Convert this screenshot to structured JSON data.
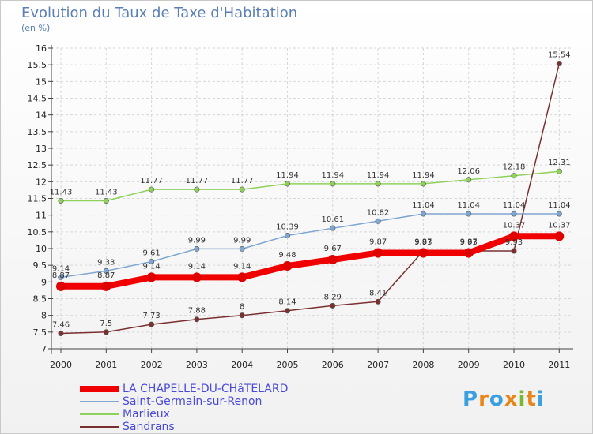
{
  "header": {
    "title": "Evolution du Taux de Taxe d'Habitation",
    "subtitle": "(en %)"
  },
  "logo": {
    "text": "Proxiti",
    "colors": [
      "#3aa0e0",
      "#e8861a",
      "#3aa0e0",
      "#e8861a",
      "#79b82e",
      "#e8861a",
      "#3aa0e0"
    ]
  },
  "chart_data": {
    "type": "line",
    "title": "Evolution du Taux de Taxe d'Habitation",
    "ylabel": "(en %)",
    "xlabel": "",
    "ylim": [
      7,
      16
    ],
    "yticks": [
      "7",
      "7.5",
      "8",
      "8.5",
      "9",
      "9.5",
      "10",
      "10.5",
      "11",
      "11.5",
      "12",
      "12.5",
      "13",
      "13.5",
      "14",
      "14.5",
      "15",
      "15.5",
      "16"
    ],
    "categories": [
      "2000",
      "2001",
      "2002",
      "2003",
      "2004",
      "2005",
      "2006",
      "2007",
      "2008",
      "2009",
      "2010",
      "2011"
    ],
    "grid": true,
    "series": [
      {
        "name": "Marlieux",
        "color": "#8fd15b",
        "values": [
          11.43,
          11.43,
          11.77,
          11.77,
          11.77,
          11.94,
          11.94,
          11.94,
          11.94,
          12.06,
          12.18,
          12.31
        ],
        "labels": [
          "11.43",
          "11.43",
          "11.77",
          "11.77",
          "11.77",
          "11.94",
          "11.94",
          "11.94",
          "11.94",
          "12.06",
          "12.18",
          "12.31"
        ]
      },
      {
        "name": "Saint-Germain-sur-Renon",
        "color": "#7fa7d1",
        "values": [
          9.14,
          9.33,
          9.61,
          9.99,
          9.99,
          10.39,
          10.61,
          10.82,
          11.04,
          11.04,
          11.04,
          11.04
        ],
        "labels": [
          "9.14",
          "9.33",
          "9.61",
          "9.99",
          "9.99",
          "10.39",
          "10.61",
          "10.82",
          "11.04",
          "11.04",
          "11.04",
          "11.04"
        ]
      },
      {
        "name": "Sandrans",
        "color": "#7a3030",
        "values": [
          7.46,
          7.5,
          7.73,
          7.88,
          8,
          8.14,
          8.29,
          8.41,
          9.93,
          9.93,
          9.93,
          15.54
        ],
        "labels": [
          "7.46",
          "7.5",
          "7.73",
          "7.88",
          "8",
          "8.14",
          "8.29",
          "8.41",
          "9.93",
          "9.93",
          "9.93",
          "15.54"
        ]
      },
      {
        "name": "LA CHAPELLE-DU-CHâTELARD",
        "color": "#f00000",
        "values": [
          8.87,
          8.87,
          9.14,
          9.14,
          9.14,
          9.48,
          9.67,
          9.87,
          9.87,
          9.87,
          10.37,
          10.37
        ],
        "labels": [
          "8.87",
          "8.87",
          "9.14",
          "9.14",
          "9.14",
          "9.48",
          "9.67",
          "9.87",
          "9.87",
          "9.87",
          "10.37",
          "10.37"
        ]
      }
    ],
    "legend": {
      "position": "bottom-left",
      "order": [
        "LA CHAPELLE-DU-CHâTELARD",
        "Saint-Germain-sur-Renon",
        "Marlieux",
        "Sandrans"
      ]
    }
  }
}
